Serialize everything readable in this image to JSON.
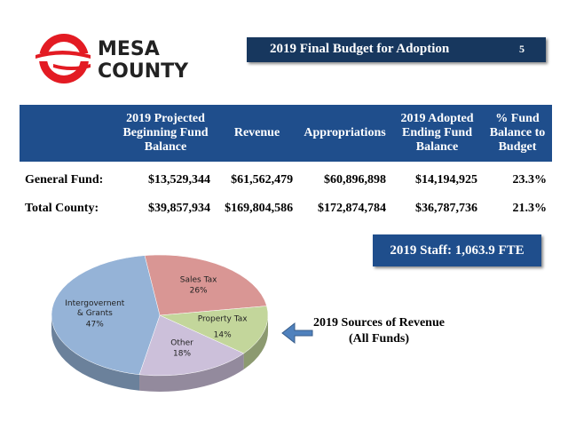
{
  "header": {
    "logo": [
      "MESA",
      "COUNTY"
    ],
    "title": "2019 Final Budget for Adoption",
    "page": "5"
  },
  "table": {
    "columns": [
      "",
      "2019 Projected Beginning Fund Balance",
      "Revenue",
      "Appropriations",
      "2019 Adopted Ending Fund Balance",
      "% Fund Balance to Budget"
    ],
    "rows": [
      [
        "General Fund:",
        "$13,529,344",
        "$61,562,479",
        "$60,896,898",
        "$14,194,925",
        "23.3%"
      ],
      [
        "Total County:",
        "$39,857,934",
        "$169,804,586",
        "$172,874,784",
        "$36,787,736",
        "21.3%"
      ]
    ]
  },
  "staff": "2019 Staff:  1,063.9 FTE",
  "callout": [
    "2019 Sources of Revenue",
    "(All Funds)"
  ],
  "chart_data": {
    "type": "pie",
    "categories": [
      "Sales Tax",
      "Property Tax",
      "Other",
      "Intergovernent & Grants"
    ],
    "values": [
      26,
      14,
      18,
      47
    ],
    "value_labels": [
      "26%",
      "14%",
      "18%",
      "47%"
    ],
    "colors": [
      "#d99694",
      "#c3d69b",
      "#ccc0da",
      "#95b3d7"
    ]
  }
}
